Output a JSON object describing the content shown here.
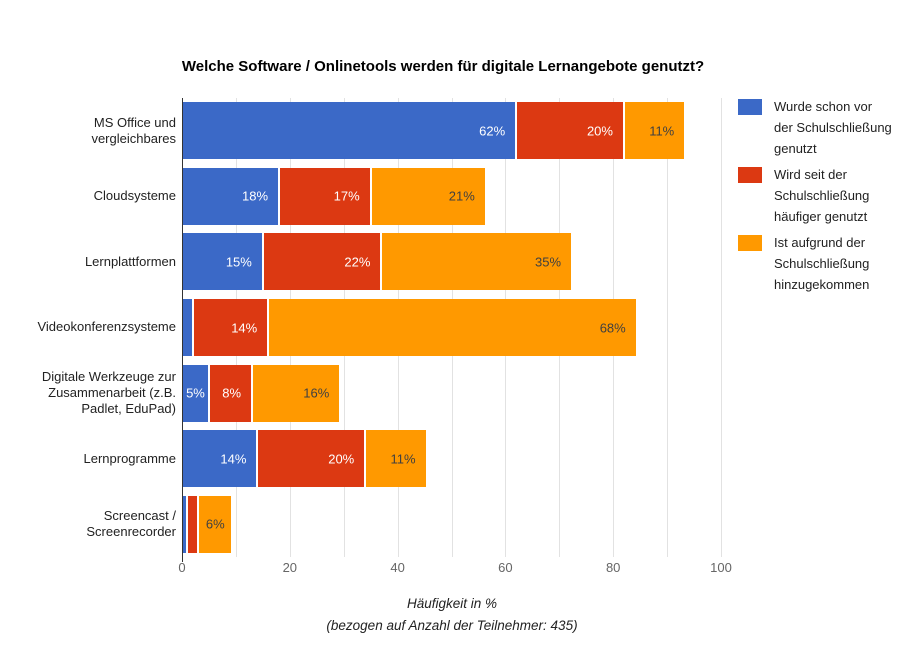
{
  "title": "Welche Software / Onlinetools werden für digitale Lernangebote genutzt?",
  "chart_data": {
    "type": "bar",
    "stacked": true,
    "orientation": "horizontal",
    "title": "Welche Software / Onlinetools werden für digitale Lernangebote genutzt?",
    "categories": [
      "MS Office und vergleichbares",
      "Cloudsysteme",
      "Lernplattformen",
      "Videokonferenzsysteme",
      "Digitale Werkzeuge zur Zusammenarbeit (z.B. Padlet, EduPad)",
      "Lernprogramme",
      "Screencast / Screenrecorder"
    ],
    "series": [
      {
        "name": "Wurde schon vor der Schulschließung genutzt",
        "color": "#3B69C7",
        "label_color": "#ffffff",
        "values": [
          62,
          18,
          15,
          2,
          5,
          14,
          1
        ]
      },
      {
        "name": "Wird seit der Schulschließung häufiger genutzt",
        "color": "#DC3912",
        "label_color": "#ffffff",
        "values": [
          20,
          17,
          22,
          14,
          8,
          20,
          2
        ]
      },
      {
        "name": "Ist aufgrund der Schulschließung hinzugekommen",
        "color": "#FF9900",
        "label_color": "#404040",
        "values": [
          11,
          21,
          35,
          68,
          16,
          11,
          6
        ]
      }
    ],
    "value_suffix": "%",
    "min_label_value": 5,
    "xlabel": "Häufigkeit in %",
    "xlabel_note": "(bezogen auf Anzahl der Teilnehmer: 435)",
    "xlim": [
      0,
      100
    ],
    "xticks": [
      0,
      20,
      40,
      60,
      80,
      100
    ],
    "gridlines_every": 10,
    "grid": true,
    "legend_position": "right"
  }
}
